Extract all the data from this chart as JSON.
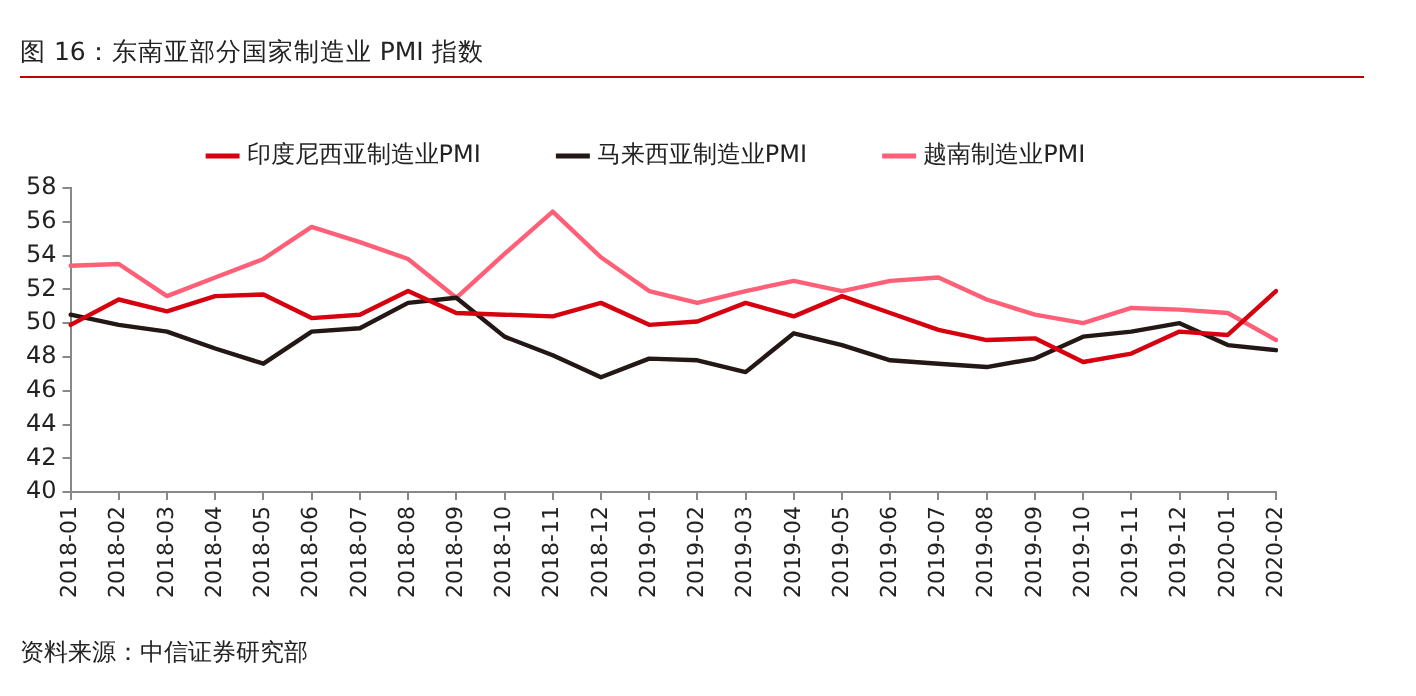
{
  "chart_data": {
    "type": "line",
    "title": "图 16：东南亚部分国家制造业 PMI 指数",
    "categories": [
      "2018-01",
      "2018-02",
      "2018-03",
      "2018-04",
      "2018-05",
      "2018-06",
      "2018-07",
      "2018-08",
      "2018-09",
      "2018-10",
      "2018-11",
      "2018-12",
      "2019-01",
      "2019-02",
      "2019-03",
      "2019-04",
      "2019-05",
      "2019-06",
      "2019-07",
      "2019-08",
      "2019-09",
      "2019-10",
      "2019-11",
      "2019-12",
      "2020-01",
      "2020-02"
    ],
    "series": [
      {
        "name": "印度尼西亚制造业PMI",
        "color": "#d7000f",
        "values": [
          49.9,
          51.4,
          50.7,
          51.6,
          51.7,
          50.3,
          50.5,
          51.9,
          50.6,
          50.5,
          50.4,
          51.2,
          49.9,
          50.1,
          51.2,
          50.4,
          51.6,
          50.6,
          49.6,
          49.0,
          49.1,
          47.7,
          48.2,
          49.5,
          49.3,
          51.9
        ]
      },
      {
        "name": "马来西亚制造业PMI",
        "color": "#231815",
        "values": [
          50.5,
          49.9,
          49.5,
          48.5,
          47.6,
          49.5,
          49.7,
          51.2,
          51.5,
          49.2,
          48.1,
          46.8,
          47.9,
          47.8,
          47.1,
          49.4,
          48.7,
          47.8,
          47.6,
          47.4,
          47.9,
          49.2,
          49.5,
          50.0,
          48.7,
          48.4
        ]
      },
      {
        "name": "越南制造业PMI",
        "color": "#ff6077",
        "values": [
          53.4,
          53.5,
          51.6,
          52.7,
          53.8,
          55.7,
          54.8,
          53.8,
          51.5,
          54.1,
          56.6,
          53.9,
          51.9,
          51.2,
          51.9,
          52.5,
          51.9,
          52.5,
          52.7,
          51.4,
          50.5,
          50.0,
          50.9,
          50.8,
          50.6,
          49.0
        ]
      }
    ],
    "ylim": [
      40,
      58
    ],
    "yticks": [
      40,
      42,
      44,
      46,
      48,
      50,
      52,
      54,
      56,
      58
    ],
    "grid": false,
    "legend": "top",
    "marker": "none",
    "line_style": "solid",
    "annotations": [
      "资料来源：中信证券研究部"
    ]
  }
}
